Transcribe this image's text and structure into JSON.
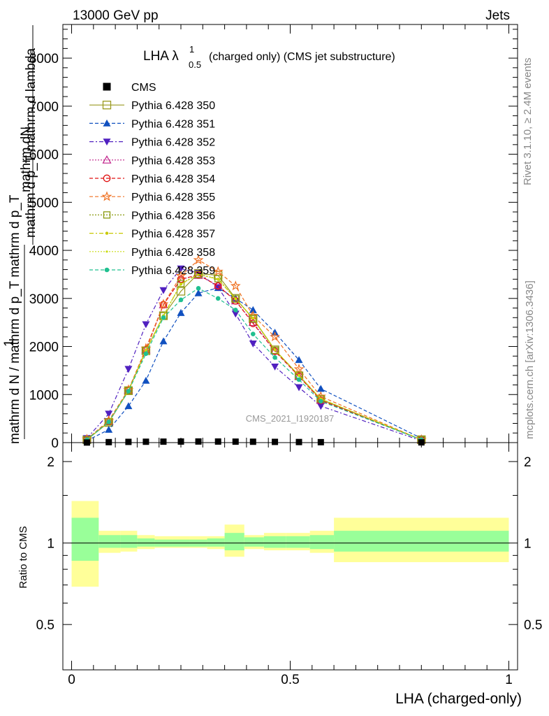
{
  "header": {
    "left": "13000 GeV pp",
    "right": "Jets"
  },
  "title": {
    "prefix": "LHA λ",
    "sup": "1",
    "sub": "0.5",
    "suffix": "(charged only) (CMS jet substructure)"
  },
  "side_labels": {
    "rivet": "Rivet 3.1.10, ≥ 2.4M events",
    "mcplots": "mcplots.cern.ch [arXiv:1306.3436]"
  },
  "watermark": "CMS_2021_I1920187",
  "ylabel_main": {
    "frac1_num": "mathrm dN",
    "frac1_den": "mathrm d p_T mathrm d lambda",
    "frac2_num": "1",
    "frac2_den": "mathrm d N / mathrm d p_T mathrm d p_T"
  },
  "ylabel_ratio": "Ratio to CMS",
  "xlabel": "LHA (charged-only)",
  "colors": {
    "cms": "#000000",
    "s350": "#9a9a20",
    "s351": "#1050c0",
    "s352": "#5020c0",
    "s353": "#c0208a",
    "s354": "#e01010",
    "s355": "#f07020",
    "s356": "#8a9a10",
    "s357": "#c8c800",
    "s358": "#c8dc10",
    "s359": "#20c090",
    "band_inner": "#99ff99",
    "band_outer": "#ffff99"
  },
  "chart_data": [
    {
      "type": "line",
      "panel": "main",
      "xlim": [
        -0.02,
        1.02
      ],
      "ylim": [
        0,
        8700
      ],
      "yticks": [
        0,
        1000,
        2000,
        3000,
        4000,
        5000,
        6000,
        7000,
        8000
      ],
      "ytick_labels": [
        "0",
        "1000",
        "2000",
        "3000",
        "4000",
        "5000",
        "6000",
        "7000",
        "8000"
      ],
      "x": [
        0.035,
        0.085,
        0.13,
        0.17,
        0.21,
        0.25,
        0.29,
        0.335,
        0.375,
        0.415,
        0.465,
        0.52,
        0.57,
        0.8
      ],
      "legend": [
        {
          "label": "CMS",
          "color_key": "cms",
          "marker": "square_filled",
          "dash": "none"
        },
        {
          "label": "Pythia 6.428 350",
          "color_key": "s350",
          "marker": "square_open",
          "dash": "solid"
        },
        {
          "label": "Pythia 6.428 351",
          "color_key": "s351",
          "marker": "triangle_up_filled",
          "dash": "5,3"
        },
        {
          "label": "Pythia 6.428 352",
          "color_key": "s352",
          "marker": "triangle_down_filled",
          "dash": "6,3,2,3"
        },
        {
          "label": "Pythia 6.428 353",
          "color_key": "s353",
          "marker": "triangle_up_open",
          "dash": "2,2"
        },
        {
          "label": "Pythia 6.428 354",
          "color_key": "s354",
          "marker": "circle_open",
          "dash": "5,3"
        },
        {
          "label": "Pythia 6.428 355",
          "color_key": "s355",
          "marker": "star_open",
          "dash": "5,3"
        },
        {
          "label": "Pythia 6.428 356",
          "color_key": "s356",
          "marker": "square_open_small",
          "dash": "2,2"
        },
        {
          "label": "Pythia 6.428 357",
          "color_key": "s357",
          "marker": "dot",
          "dash": "6,3,2,3"
        },
        {
          "label": "Pythia 6.428 358",
          "color_key": "s358",
          "marker": "dot_small",
          "dash": "2,2"
        },
        {
          "label": "Pythia 6.428 359",
          "color_key": "s359",
          "marker": "circle_filled",
          "dash": "5,3"
        }
      ],
      "series": [
        {
          "name": "CMS",
          "values": [
            2,
            10,
            15,
            18,
            20,
            22,
            23,
            22,
            20,
            18,
            15,
            12,
            9,
            5
          ]
        },
        {
          "name": "Pythia 6.428 350",
          "values": [
            60,
            420,
            1080,
            1910,
            2640,
            3150,
            3520,
            3480,
            3000,
            2580,
            1930,
            1390,
            900,
            60
          ]
        },
        {
          "name": "Pythia 6.428 351",
          "values": [
            40,
            270,
            760,
            1290,
            2110,
            2700,
            3110,
            3220,
            3000,
            2760,
            2290,
            1720,
            1120,
            90
          ]
        },
        {
          "name": "Pythia 6.428 352",
          "values": [
            90,
            600,
            1530,
            2460,
            3170,
            3620,
            3530,
            3230,
            2680,
            2060,
            1580,
            1150,
            760,
            40
          ]
        },
        {
          "name": "Pythia 6.428 353",
          "values": [
            70,
            440,
            1090,
            1930,
            2870,
            3400,
            3480,
            3270,
            2950,
            2500,
            1910,
            1380,
            880,
            60
          ]
        },
        {
          "name": "Pythia 6.428 354",
          "values": [
            70,
            440,
            1090,
            1930,
            2870,
            3400,
            3490,
            3260,
            2950,
            2480,
            1900,
            1380,
            880,
            60
          ]
        },
        {
          "name": "Pythia 6.428 355",
          "values": [
            70,
            460,
            1100,
            1960,
            2880,
            3470,
            3800,
            3560,
            3260,
            2640,
            2200,
            1530,
            960,
            60
          ]
        },
        {
          "name": "Pythia 6.428 356",
          "values": [
            60,
            430,
            1080,
            1920,
            2640,
            3310,
            3500,
            3410,
            2990,
            2580,
            1920,
            1400,
            910,
            60
          ]
        },
        {
          "name": "Pythia 6.428 357",
          "values": [
            60,
            430,
            1080,
            1920,
            2640,
            3300,
            3500,
            3400,
            2990,
            2590,
            1930,
            1400,
            910,
            60
          ]
        },
        {
          "name": "Pythia 6.428 358",
          "values": [
            60,
            430,
            1080,
            1920,
            2640,
            3300,
            3500,
            3400,
            2990,
            2590,
            1930,
            1400,
            910,
            60
          ]
        },
        {
          "name": "Pythia 6.428 359",
          "values": [
            60,
            430,
            1070,
            1850,
            2600,
            2970,
            3210,
            3000,
            2760,
            2260,
            1770,
            1310,
            860,
            60
          ]
        }
      ]
    },
    {
      "type": "area",
      "panel": "ratio",
      "xlim": [
        -0.02,
        1.02
      ],
      "ylim": [
        0.34,
        2.35
      ],
      "xticks": [
        0,
        0.5,
        1
      ],
      "xtick_labels": [
        "0",
        "0.5",
        "1"
      ],
      "yticks": [
        0.5,
        1,
        2
      ],
      "ytick_labels": [
        "0.5",
        "1",
        "2"
      ],
      "reference": 1,
      "bins": [
        {
          "x0": 0.0,
          "x1": 0.062,
          "inner": [
            0.86,
            1.24
          ],
          "outer": [
            0.69,
            1.43
          ]
        },
        {
          "x0": 0.062,
          "x1": 0.112,
          "inner": [
            0.96,
            1.07
          ],
          "outer": [
            0.92,
            1.11
          ]
        },
        {
          "x0": 0.112,
          "x1": 0.15,
          "inner": [
            0.96,
            1.07
          ],
          "outer": [
            0.93,
            1.11
          ]
        },
        {
          "x0": 0.15,
          "x1": 0.19,
          "inner": [
            0.97,
            1.04
          ],
          "outer": [
            0.95,
            1.07
          ]
        },
        {
          "x0": 0.19,
          "x1": 0.23,
          "inner": [
            0.97,
            1.03
          ],
          "outer": [
            0.96,
            1.06
          ]
        },
        {
          "x0": 0.23,
          "x1": 0.27,
          "inner": [
            0.97,
            1.03
          ],
          "outer": [
            0.96,
            1.06
          ]
        },
        {
          "x0": 0.27,
          "x1": 0.31,
          "inner": [
            0.97,
            1.03
          ],
          "outer": [
            0.96,
            1.06
          ]
        },
        {
          "x0": 0.31,
          "x1": 0.35,
          "inner": [
            0.97,
            1.04
          ],
          "outer": [
            0.95,
            1.06
          ]
        },
        {
          "x0": 0.35,
          "x1": 0.395,
          "inner": [
            0.94,
            1.09
          ],
          "outer": [
            0.89,
            1.17
          ]
        },
        {
          "x0": 0.395,
          "x1": 0.44,
          "inner": [
            0.97,
            1.05
          ],
          "outer": [
            0.95,
            1.07
          ]
        },
        {
          "x0": 0.44,
          "x1": 0.49,
          "inner": [
            0.96,
            1.06
          ],
          "outer": [
            0.94,
            1.09
          ]
        },
        {
          "x0": 0.49,
          "x1": 0.545,
          "inner": [
            0.96,
            1.06
          ],
          "outer": [
            0.94,
            1.09
          ]
        },
        {
          "x0": 0.545,
          "x1": 0.6,
          "inner": [
            0.95,
            1.07
          ],
          "outer": [
            0.92,
            1.11
          ]
        },
        {
          "x0": 0.6,
          "x1": 1.0,
          "inner": [
            0.93,
            1.11
          ],
          "outer": [
            0.85,
            1.24
          ]
        }
      ]
    }
  ]
}
